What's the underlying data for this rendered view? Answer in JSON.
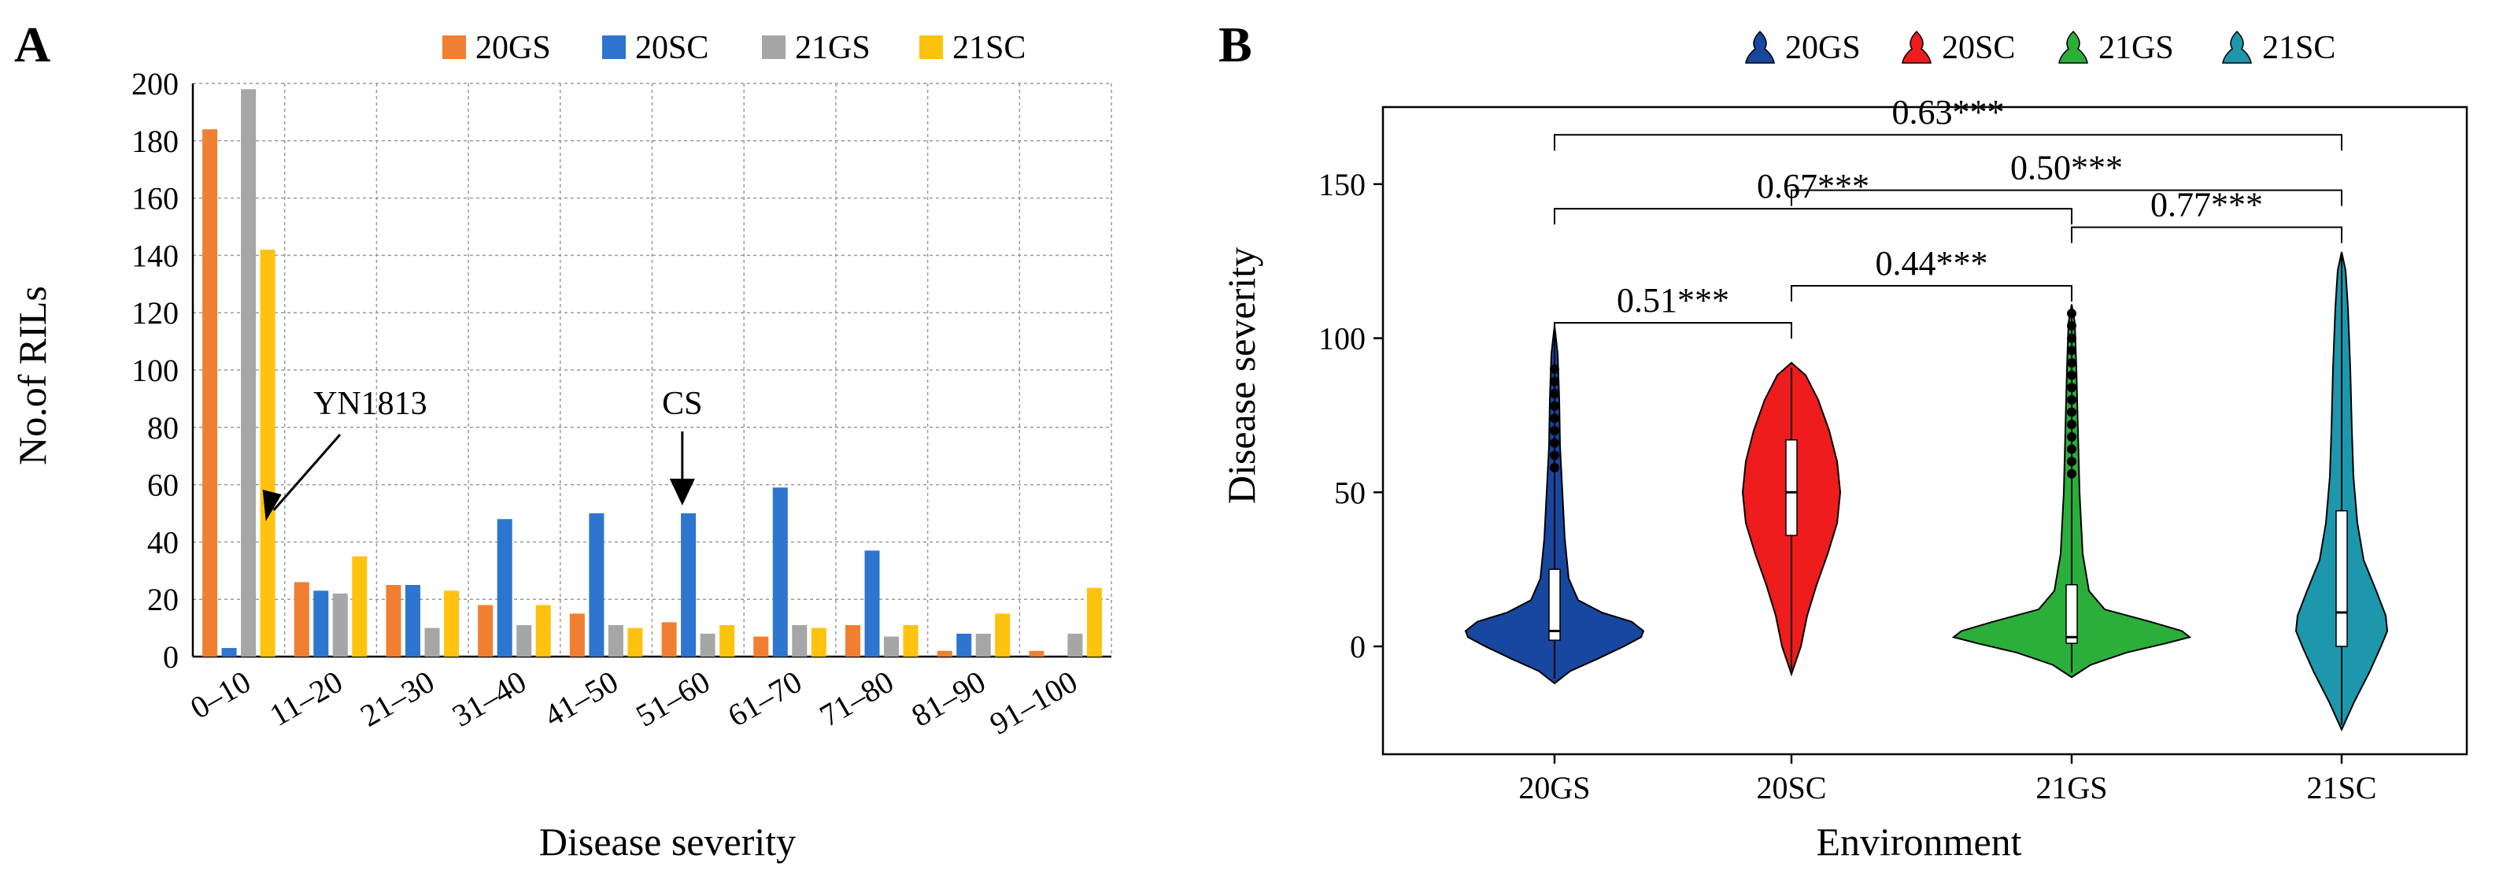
{
  "chart_data": [
    {
      "panel": "A",
      "type": "bar",
      "xlabel": "Disease severity",
      "ylabel": "No.of RILs",
      "ylim": [
        0,
        200
      ],
      "yticks": [
        0,
        20,
        40,
        60,
        80,
        100,
        120,
        140,
        160,
        180,
        200
      ],
      "grid": true,
      "legend_position": "top",
      "categories": [
        "0–10",
        "11–20",
        "21–30",
        "31–40",
        "41–50",
        "51–60",
        "61–70",
        "71–80",
        "81–90",
        "91–100"
      ],
      "series": [
        {
          "name": "20GS",
          "color": "#F07F32",
          "values": [
            184,
            26,
            25,
            18,
            15,
            12,
            7,
            11,
            2,
            2
          ]
        },
        {
          "name": "20SC",
          "color": "#2E75D0",
          "values": [
            3,
            23,
            25,
            48,
            50,
            50,
            59,
            37,
            8,
            0
          ]
        },
        {
          "name": "21GS",
          "color": "#A6A6A6",
          "values": [
            198,
            22,
            10,
            11,
            11,
            8,
            11,
            7,
            8,
            8
          ]
        },
        {
          "name": "21SC",
          "color": "#FFC20E",
          "values": [
            142,
            35,
            23,
            18,
            10,
            11,
            10,
            11,
            15,
            24
          ]
        }
      ],
      "annotations": [
        {
          "text": "YN1813",
          "category": "0–10",
          "value": 50
        },
        {
          "text": "CS",
          "category": "51–60",
          "value": 50
        }
      ]
    },
    {
      "panel": "B",
      "type": "violin",
      "xlabel": "Environment",
      "ylabel": "Disease severity",
      "ylim": [
        -35,
        175
      ],
      "yticks": [
        0,
        50,
        100,
        150
      ],
      "legend_position": "top",
      "categories": [
        "20GS",
        "20SC",
        "21GS",
        "21SC"
      ],
      "series": [
        {
          "name": "20GS",
          "color": "#17479E",
          "min": -12,
          "max": 104,
          "q1": 2,
          "median": 5,
          "q3": 25
        },
        {
          "name": "20SC",
          "color": "#EE1C1C",
          "min": -9,
          "max": 92,
          "q1": 36,
          "median": 50,
          "q3": 67
        },
        {
          "name": "21GS",
          "color": "#2BAE3A",
          "min": -10,
          "max": 111,
          "q1": 1,
          "median": 3,
          "q3": 20
        },
        {
          "name": "21SC",
          "color": "#1C97AC",
          "min": -27,
          "max": 128,
          "q1": 0,
          "median": 11,
          "q3": 44
        }
      ],
      "comparisons": [
        {
          "pair": [
            "20GS",
            "20SC"
          ],
          "label": "0.51***",
          "level": 105
        },
        {
          "pair": [
            "20SC",
            "21GS"
          ],
          "label": "0.44***",
          "level": 117
        },
        {
          "pair": [
            "21GS",
            "21SC"
          ],
          "label": "0.77***",
          "level": 136
        },
        {
          "pair": [
            "20GS",
            "21GS"
          ],
          "label": "0.67***",
          "level": 142
        },
        {
          "pair": [
            "20SC",
            "21SC"
          ],
          "label": "0.50***",
          "level": 148
        },
        {
          "pair": [
            "20GS",
            "21SC"
          ],
          "label": "0.63***",
          "level": 166
        }
      ]
    }
  ]
}
